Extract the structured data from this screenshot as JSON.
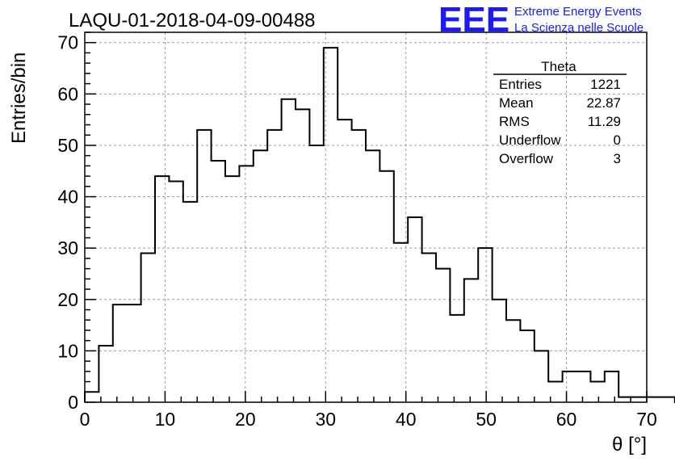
{
  "header": {
    "run_title": "LAQU-01-2018-04-09-00488",
    "logo_text": "EEE",
    "logo_line1": "Extreme Energy Events",
    "logo_line2": "La Scienza nelle Scuole"
  },
  "stats_box": {
    "title": "Theta",
    "rows": [
      {
        "label": "Entries",
        "value": "1221"
      },
      {
        "label": "Mean",
        "value": "22.87"
      },
      {
        "label": "RMS",
        "value": "11.29"
      },
      {
        "label": "Underflow",
        "value": "0"
      },
      {
        "label": "Overflow",
        "value": "3"
      }
    ]
  },
  "colors": {
    "logo": "#1a1aff",
    "histogram": "#000000",
    "grid": "#9a9a9a"
  },
  "chart_data": {
    "type": "bar",
    "xlabel": "θ [°]",
    "ylabel": "Entries/bin",
    "xlim": [
      0,
      70
    ],
    "ylim": [
      0,
      72
    ],
    "grid": true,
    "bin_width": 1.75,
    "bin_edges_start": 0,
    "values": [
      2,
      11,
      19,
      19,
      29,
      44,
      43,
      39,
      53,
      47,
      44,
      46,
      49,
      53,
      59,
      57,
      50,
      69,
      55,
      53,
      49,
      45,
      31,
      36,
      29,
      26,
      17,
      24,
      30,
      20,
      16,
      14,
      10,
      4,
      6,
      6,
      4,
      6,
      1,
      1,
      1,
      1,
      0,
      0,
      0,
      0,
      0,
      0,
      0,
      0
    ],
    "xticks": [
      0,
      10,
      20,
      30,
      40,
      50,
      60,
      70
    ],
    "yticks": [
      0,
      10,
      20,
      30,
      40,
      50,
      60,
      70
    ]
  }
}
